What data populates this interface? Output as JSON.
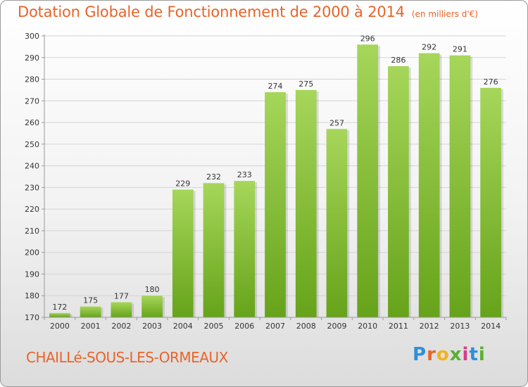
{
  "header": {
    "title": "Dotation Globale de Fonctionnement de 2000 à 2014",
    "unit": "(en milliers d'€)"
  },
  "footer": {
    "city": "CHAILLé-SOUS-LES-ORMEAUX",
    "logo": "Proxiti"
  },
  "colors": {
    "title": "#e8642a",
    "bar_light": "#a6d65a",
    "bar_dark": "#66a31a",
    "logo_letters": [
      "#2f8fd8",
      "#e8642a",
      "#f2b31c",
      "#59b030",
      "#d93a8a",
      "#2f8fd8",
      "#59b030"
    ]
  },
  "chart_data": {
    "type": "bar",
    "title": "Dotation Globale de Fonctionnement de 2000 à 2014",
    "subtitle": "(en milliers d'€)",
    "xlabel": "",
    "ylabel": "",
    "categories": [
      "2000",
      "2001",
      "2002",
      "2003",
      "2004",
      "2005",
      "2006",
      "2007",
      "2008",
      "2009",
      "2010",
      "2011",
      "2012",
      "2013",
      "2014"
    ],
    "values": [
      172,
      175,
      177,
      180,
      229,
      232,
      233,
      274,
      275,
      257,
      296,
      286,
      292,
      291,
      276
    ],
    "ylim": [
      170,
      300
    ],
    "yticks": [
      170,
      180,
      190,
      200,
      210,
      220,
      230,
      240,
      250,
      260,
      270,
      280,
      290,
      300
    ],
    "grid": true,
    "legend": "none"
  }
}
